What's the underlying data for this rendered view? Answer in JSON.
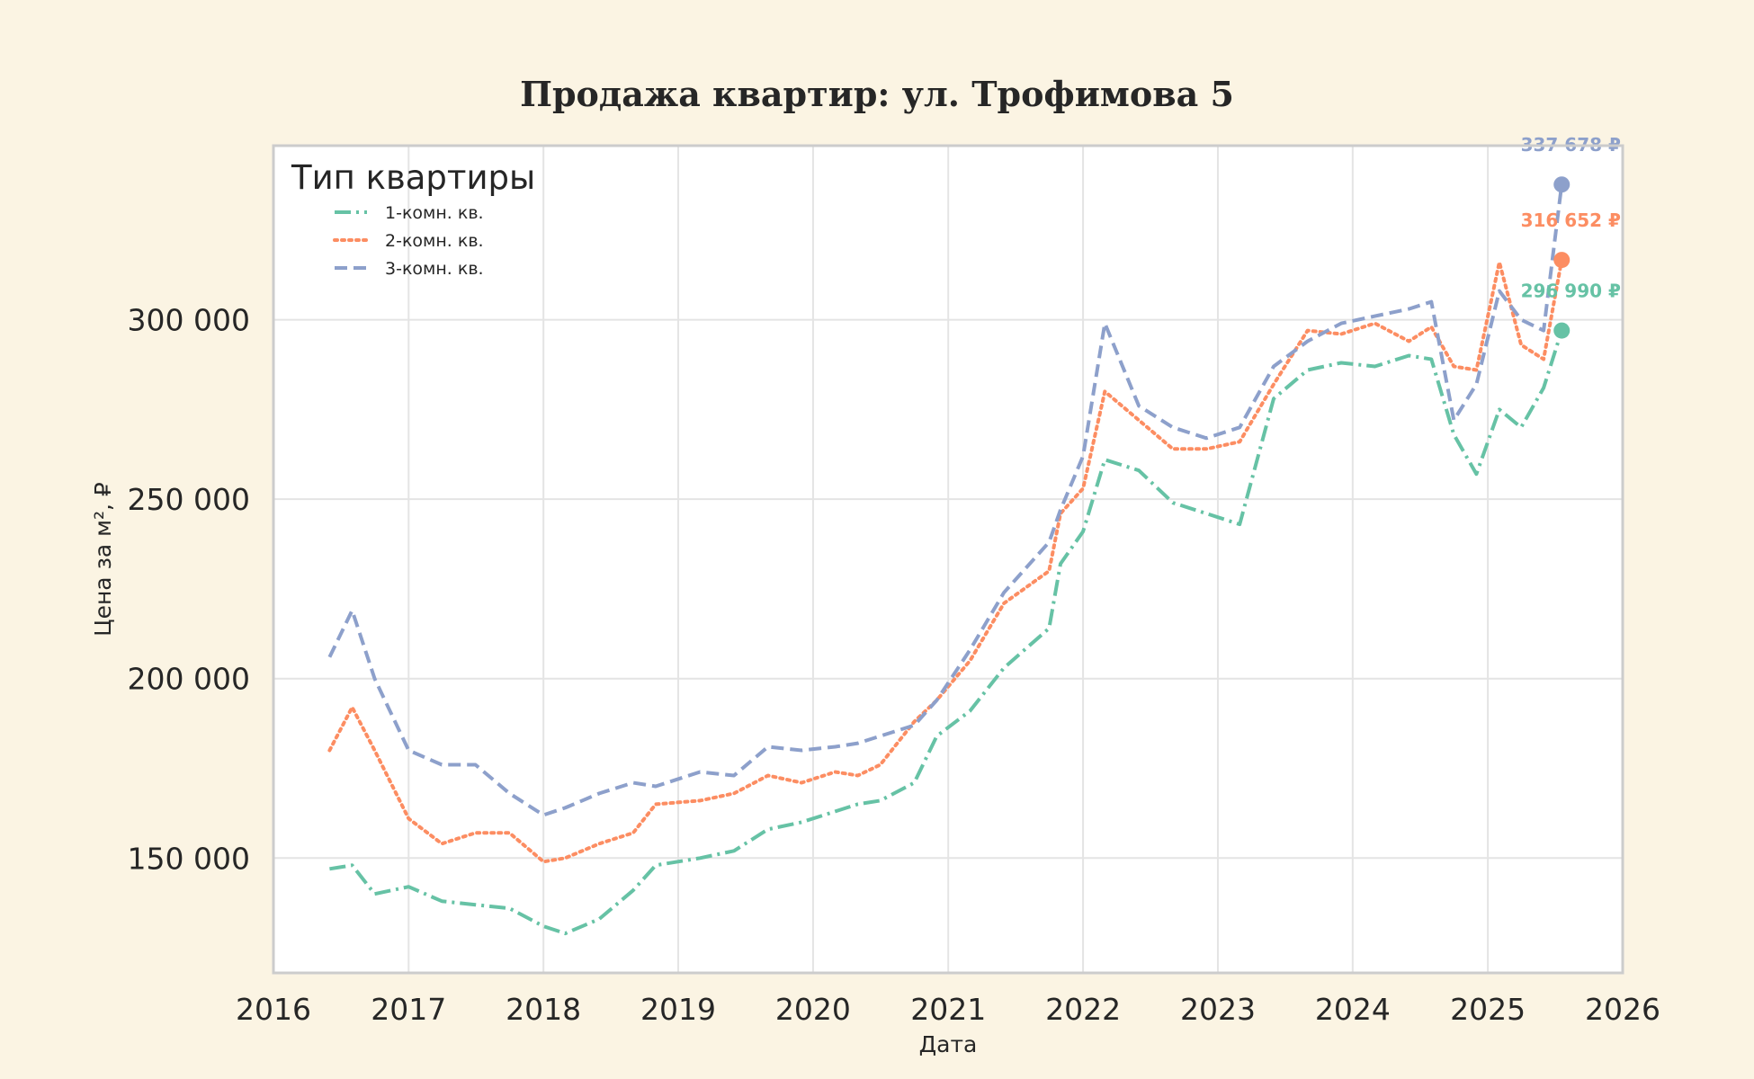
{
  "chart_data": {
    "type": "line",
    "title": "Продажа квартир: ул. Трофимова 5",
    "xlabel": "Дата",
    "ylabel": "Цена за м², ₽",
    "xlim": [
      "2016-01-01",
      "2026-01-01"
    ],
    "ylim": [
      118000,
      348500
    ],
    "x_ticks": [
      "2016",
      "2017",
      "2018",
      "2019",
      "2020",
      "2021",
      "2022",
      "2023",
      "2024",
      "2025",
      "2026"
    ],
    "y_ticks": [
      {
        "value": 150000,
        "label": "150 000"
      },
      {
        "value": 200000,
        "label": "200 000"
      },
      {
        "value": 250000,
        "label": "250 000"
      },
      {
        "value": 300000,
        "label": "300 000"
      }
    ],
    "grid": true,
    "legend": {
      "title": "Тип квартиры",
      "position": "top-left"
    },
    "series": [
      {
        "name": "1-комн. кв.",
        "color": "#66c2a5",
        "dash": "dashdot",
        "x": [
          "2016-06-01",
          "2016-08-01",
          "2016-10-01",
          "2017-01-01",
          "2017-04-01",
          "2017-07-01",
          "2017-10-01",
          "2018-01-01",
          "2018-03-01",
          "2018-06-01",
          "2018-09-01",
          "2018-11-01",
          "2019-03-01",
          "2019-06-01",
          "2019-09-01",
          "2019-12-01",
          "2020-03-01",
          "2020-05-01",
          "2020-07-01",
          "2020-10-01",
          "2020-12-01",
          "2021-03-01",
          "2021-06-01",
          "2021-10-01",
          "2021-11-01",
          "2022-01-01",
          "2022-03-01",
          "2022-06-01",
          "2022-09-01",
          "2022-12-01",
          "2023-03-01",
          "2023-06-01",
          "2023-09-01",
          "2023-12-01",
          "2024-03-01",
          "2024-06-01",
          "2024-08-01",
          "2024-10-01",
          "2024-12-01",
          "2025-02-01",
          "2025-04-01",
          "2025-06-01",
          "2025-07-20"
        ],
        "y": [
          147000,
          148000,
          140000,
          142000,
          138000,
          137000,
          136000,
          131000,
          129000,
          133000,
          141000,
          148000,
          150000,
          152000,
          158000,
          160000,
          163000,
          165000,
          166000,
          171000,
          184000,
          191000,
          203000,
          214000,
          232000,
          241000,
          261000,
          258000,
          249000,
          246000,
          243000,
          278000,
          286000,
          288000,
          287000,
          290000,
          289000,
          268000,
          257000,
          275000,
          270000,
          281000,
          296990
        ],
        "end_label": "296 990 ₽"
      },
      {
        "name": "2-комн. кв.",
        "color": "#fc8d62",
        "dash": "dotted",
        "x": [
          "2016-06-01",
          "2016-08-01",
          "2016-10-01",
          "2017-01-01",
          "2017-04-01",
          "2017-07-01",
          "2017-10-01",
          "2018-01-01",
          "2018-03-01",
          "2018-06-01",
          "2018-09-01",
          "2018-11-01",
          "2019-03-01",
          "2019-06-01",
          "2019-09-01",
          "2019-12-01",
          "2020-03-01",
          "2020-05-01",
          "2020-07-01",
          "2020-10-01",
          "2020-12-01",
          "2021-03-01",
          "2021-06-01",
          "2021-10-01",
          "2021-11-01",
          "2022-01-01",
          "2022-03-01",
          "2022-06-01",
          "2022-09-01",
          "2022-12-01",
          "2023-03-01",
          "2023-06-01",
          "2023-09-01",
          "2023-12-01",
          "2024-03-01",
          "2024-06-01",
          "2024-08-01",
          "2024-10-01",
          "2024-12-01",
          "2025-02-01",
          "2025-04-01",
          "2025-06-01",
          "2025-07-20"
        ],
        "y": [
          180000,
          192000,
          180000,
          161000,
          154000,
          157000,
          157000,
          149000,
          150000,
          154000,
          157000,
          165000,
          166000,
          168000,
          173000,
          171000,
          174000,
          173000,
          176000,
          188000,
          194000,
          205000,
          221000,
          230000,
          246000,
          253000,
          280000,
          272000,
          264000,
          264000,
          266000,
          282000,
          297000,
          296000,
          299000,
          294000,
          298000,
          287000,
          286000,
          316000,
          293000,
          289000,
          316652
        ],
        "end_label": "316 652 ₽"
      },
      {
        "name": "3-комн. кв.",
        "color": "#8da0cb",
        "dash": "dashed",
        "x": [
          "2016-06-01",
          "2016-08-01",
          "2016-10-01",
          "2017-01-01",
          "2017-04-01",
          "2017-07-01",
          "2017-10-01",
          "2018-01-01",
          "2018-03-01",
          "2018-06-01",
          "2018-09-01",
          "2018-11-01",
          "2019-03-01",
          "2019-06-01",
          "2019-09-01",
          "2019-12-01",
          "2020-03-01",
          "2020-05-01",
          "2020-07-01",
          "2020-10-01",
          "2020-12-01",
          "2021-03-01",
          "2021-06-01",
          "2021-10-01",
          "2021-11-01",
          "2022-01-01",
          "2022-03-01",
          "2022-06-01",
          "2022-09-01",
          "2022-12-01",
          "2023-03-01",
          "2023-06-01",
          "2023-09-01",
          "2023-12-01",
          "2024-03-01",
          "2024-06-01",
          "2024-08-01",
          "2024-10-01",
          "2024-12-01",
          "2025-02-01",
          "2025-04-01",
          "2025-06-01",
          "2025-07-20"
        ],
        "y": [
          206000,
          219000,
          200000,
          180000,
          176000,
          176000,
          168000,
          162000,
          164000,
          168000,
          171000,
          170000,
          174000,
          173000,
          181000,
          180000,
          181000,
          182000,
          184000,
          187000,
          194000,
          208000,
          224000,
          238000,
          247000,
          262000,
          299000,
          276000,
          270000,
          267000,
          270000,
          287000,
          294000,
          299000,
          301000,
          303000,
          305000,
          272000,
          282000,
          308000,
          300000,
          297000,
          337678
        ],
        "end_label": "337 678 ₽"
      }
    ]
  }
}
